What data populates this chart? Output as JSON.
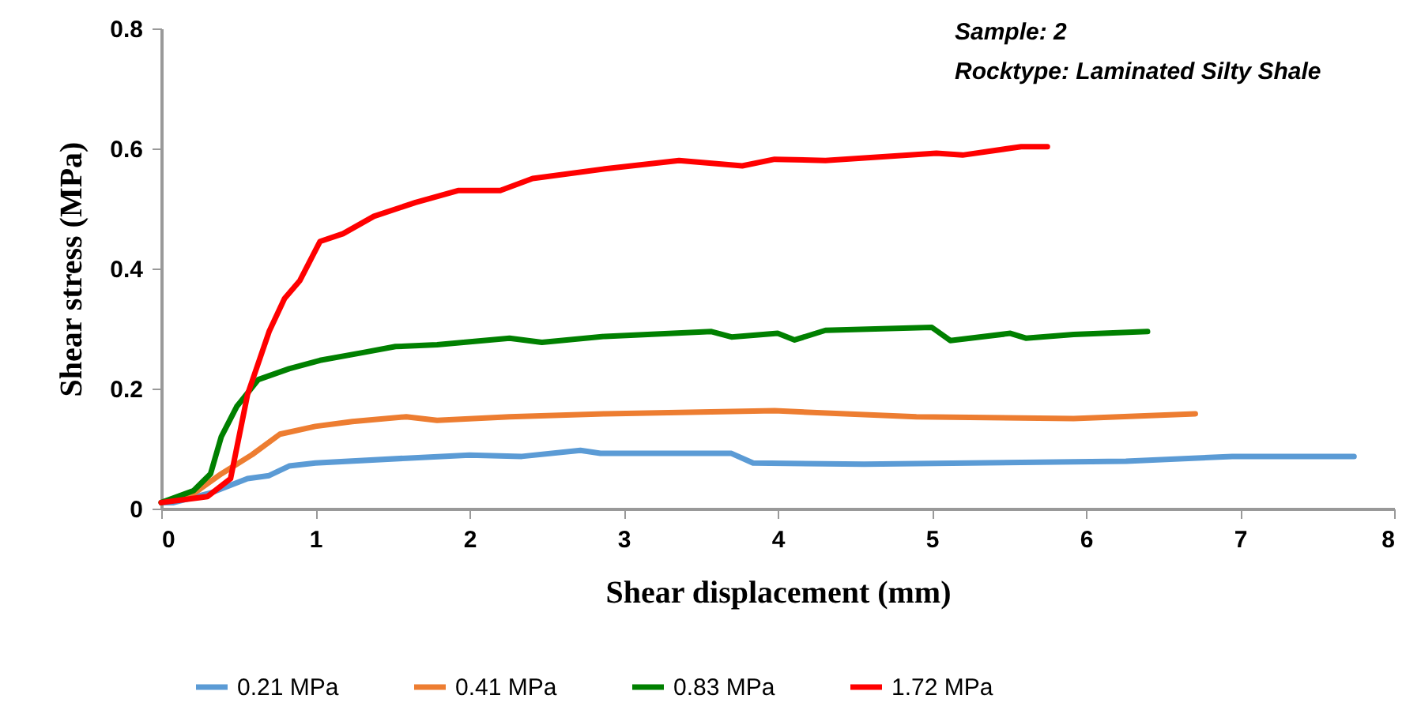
{
  "chart_data": {
    "type": "line",
    "xlabel": "Shear displacement (mm)",
    "ylabel": "Shear stress (MPa)",
    "annotations": [
      "Sample: 2",
      "Rocktype:  Laminated Silty Shale"
    ],
    "xlim": [
      0,
      8
    ],
    "xticks": [
      0,
      1,
      2,
      3,
      4,
      5,
      6,
      7,
      8
    ],
    "ylim": [
      0,
      0.8
    ],
    "yticks": [
      0,
      0.2,
      0.4,
      0.6,
      0.8
    ],
    "grid": false,
    "legend": "bottom",
    "marker": "none",
    "line_style": "solid",
    "series": [
      {
        "name": "0.21 MPa",
        "color": "#5b9bd5",
        "x": [
          0,
          0.08,
          0.32,
          0.56,
          0.7,
          0.83,
          1.0,
          1.59,
          2.0,
          2.34,
          2.72,
          2.85,
          3.7,
          3.84,
          4.56,
          6.26,
          6.95,
          7.74
        ],
        "values": [
          0.01,
          0.01,
          0.026,
          0.05,
          0.055,
          0.071,
          0.076,
          0.084,
          0.089,
          0.087,
          0.097,
          0.092,
          0.092,
          0.076,
          0.074,
          0.079,
          0.087,
          0.087
        ]
      },
      {
        "name": "0.41 MPa",
        "color": "#ed7d31",
        "x": [
          0,
          0.21,
          0.39,
          0.59,
          0.77,
          1.0,
          1.24,
          1.59,
          1.79,
          2.26,
          2.88,
          3.98,
          4.9,
          5.92,
          6.71
        ],
        "values": [
          0.01,
          0.025,
          0.058,
          0.09,
          0.124,
          0.137,
          0.145,
          0.153,
          0.147,
          0.153,
          0.158,
          0.163,
          0.153,
          0.15,
          0.158
        ]
      },
      {
        "name": "0.83 MPa",
        "color": "#008000",
        "x": [
          0,
          0.21,
          0.32,
          0.39,
          0.49,
          0.63,
          0.83,
          1.03,
          1.31,
          1.52,
          1.79,
          2.26,
          2.47,
          2.88,
          3.57,
          3.7,
          4.0,
          4.11,
          4.31,
          5.0,
          5.12,
          5.51,
          5.61,
          5.92,
          6.4
        ],
        "values": [
          0.01,
          0.03,
          0.058,
          0.12,
          0.17,
          0.215,
          0.233,
          0.247,
          0.26,
          0.27,
          0.273,
          0.284,
          0.277,
          0.287,
          0.295,
          0.286,
          0.292,
          0.281,
          0.297,
          0.302,
          0.28,
          0.292,
          0.284,
          0.29,
          0.295
        ]
      },
      {
        "name": "1.72 MPa",
        "color": "#ff0000",
        "x": [
          0,
          0.3,
          0.45,
          0.56,
          0.7,
          0.8,
          0.9,
          1.03,
          1.18,
          1.38,
          1.65,
          1.93,
          2.2,
          2.41,
          2.88,
          3.36,
          3.77,
          3.98,
          4.31,
          5.03,
          5.2,
          5.58,
          5.75
        ],
        "values": [
          0.01,
          0.02,
          0.05,
          0.19,
          0.295,
          0.35,
          0.38,
          0.445,
          0.458,
          0.487,
          0.51,
          0.53,
          0.53,
          0.55,
          0.566,
          0.58,
          0.571,
          0.582,
          0.58,
          0.592,
          0.589,
          0.603,
          0.603
        ]
      }
    ]
  }
}
